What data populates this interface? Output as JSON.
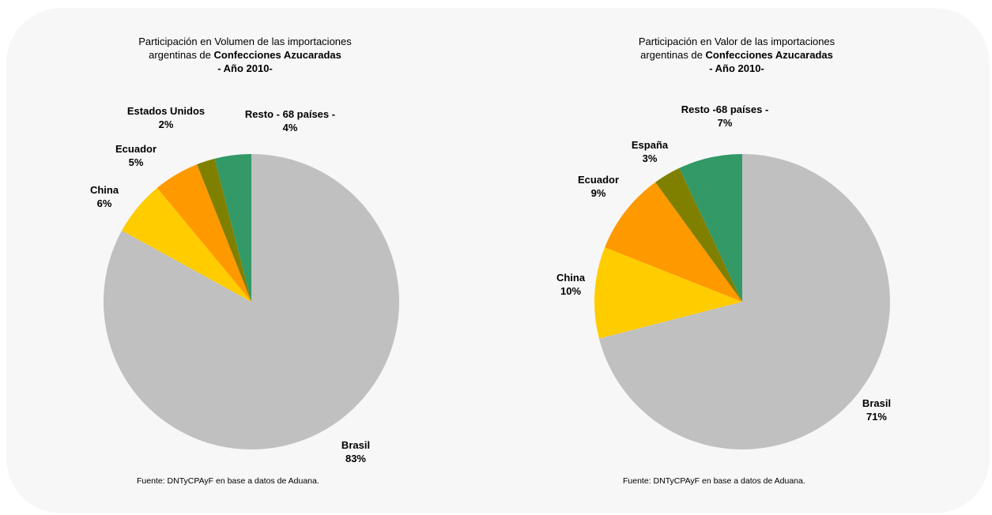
{
  "source": "Fuente: DNTyCPAyF en base a datos de Aduana.",
  "colors": {
    "Brasil": "#c0c0c0",
    "China": "#ffcc00",
    "Ecuador": "#ff9900",
    "Estados Unidos": "#808000",
    "España": "#808000",
    "Resto": "#339966"
  },
  "chart_data": [
    {
      "type": "pie",
      "title_line1": "Participación en Volumen de las importaciones",
      "title_line2_prefix": "argentinas de ",
      "title_line2_bold": "Confecciones Azucaradas",
      "title_line3": "- Año 2010-",
      "slices": [
        {
          "name": "Brasil",
          "value": 83,
          "label": "83%"
        },
        {
          "name": "China",
          "value": 6,
          "label": "6%"
        },
        {
          "name": "Ecuador",
          "value": 5,
          "label": "5%"
        },
        {
          "name": "Estados Unidos",
          "value": 2,
          "label": "2%"
        },
        {
          "name": "Resto - 68 países -",
          "value": 4,
          "label": "4%"
        }
      ]
    },
    {
      "type": "pie",
      "title_line1": "Participación en Valor de las importaciones",
      "title_line2_prefix": "argentinas de ",
      "title_line2_bold": "Confecciones Azucaradas",
      "title_line3": "- Año 2010-",
      "slices": [
        {
          "name": "Brasil",
          "value": 71,
          "label": "71%"
        },
        {
          "name": "China",
          "value": 10,
          "label": "10%"
        },
        {
          "name": "Ecuador",
          "value": 9,
          "label": "9%"
        },
        {
          "name": "España",
          "value": 3,
          "label": "3%"
        },
        {
          "name": "Resto -68 países -",
          "value": 7,
          "label": "7%"
        }
      ]
    }
  ]
}
